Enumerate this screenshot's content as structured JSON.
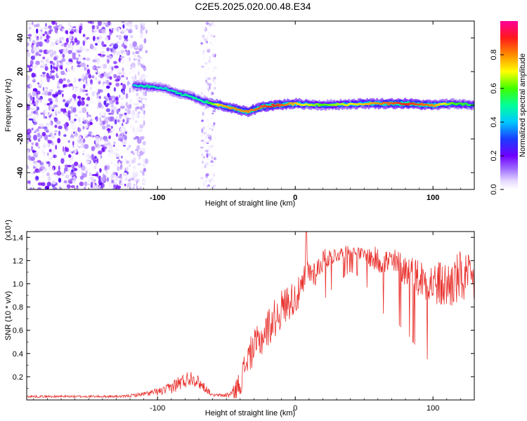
{
  "title": "C2E5.2025.020.00.48.E34",
  "chart_data": [
    {
      "type": "heatmap",
      "xlabel": "Height of straight line (km)",
      "ylabel": "Frequency (Hz)",
      "xlim": [
        -195,
        130
      ],
      "ylim": [
        -50,
        50
      ],
      "xticks": [
        -100,
        0,
        100
      ],
      "xtick_labels": [
        "-100",
        "0",
        "100"
      ],
      "yticks": [
        -40,
        -20,
        0,
        20,
        40
      ],
      "ytick_labels": [
        "-40",
        "-20",
        "0",
        "20",
        "40"
      ],
      "colorbar": {
        "label": "Normalized spectral amplitude",
        "range": [
          0,
          1
        ],
        "ticks": [
          0.0,
          0.2,
          0.4,
          0.6,
          0.8
        ],
        "tick_labels": [
          "0.0",
          "0.2",
          "0.4",
          "0.6",
          "0.8"
        ],
        "colormap": "rainbow (white-violet-blue-cyan-green-yellow-red-magenta)"
      },
      "ridge": {
        "x": [
          -117,
          -105,
          -95,
          -85,
          -75,
          -65,
          -55,
          -45,
          -35,
          -25,
          -15,
          0,
          20,
          50,
          80,
          100,
          115,
          130
        ],
        "freq": [
          12,
          11,
          10,
          7,
          5,
          2,
          0,
          -2,
          -4,
          -1,
          0,
          1,
          0,
          1,
          1,
          0,
          1,
          0
        ],
        "amplitude": [
          0.45,
          0.5,
          0.45,
          0.5,
          0.5,
          0.5,
          0.75,
          0.8,
          0.8,
          0.85,
          0.9,
          0.75,
          0.6,
          0.75,
          0.9,
          0.8,
          0.6,
          0.55
        ]
      },
      "noise_region_x": [
        -195,
        -112
      ],
      "noise_column_x": [
        -68,
        -58
      ]
    },
    {
      "type": "line",
      "xlabel": "Height of straight line (km)",
      "ylabel": "SNR (10 * v/v)",
      "y_multiplier": "(x10⁴)",
      "xlim": [
        -195,
        130
      ],
      "ylim": [
        0,
        1.45
      ],
      "xticks": [
        -100,
        0,
        100
      ],
      "xtick_labels": [
        "-100",
        "0",
        "100"
      ],
      "yticks": [
        0.2,
        0.4,
        0.6,
        0.8,
        1.0,
        1.2,
        1.4
      ],
      "ytick_labels": [
        "0.2",
        "0.4",
        "0.6",
        "0.8",
        "1.0",
        "1.2",
        "1.4"
      ],
      "color": "#e8302c",
      "envelope": {
        "x": [
          -195,
          -150,
          -125,
          -110,
          -95,
          -85,
          -75,
          -65,
          -60,
          -50,
          -45,
          -40,
          -35,
          -30,
          -25,
          -20,
          -15,
          -10,
          -5,
          0,
          5,
          8,
          10,
          15,
          20,
          30,
          40,
          50,
          55,
          60,
          70,
          80,
          90,
          100,
          110,
          120,
          130
        ],
        "mean": [
          0.03,
          0.03,
          0.03,
          0.05,
          0.08,
          0.14,
          0.2,
          0.1,
          0.04,
          0.04,
          0.06,
          0.15,
          0.35,
          0.45,
          0.52,
          0.62,
          0.7,
          0.78,
          0.85,
          0.88,
          0.95,
          1.1,
          1.1,
          1.1,
          1.2,
          1.25,
          1.28,
          1.25,
          1.22,
          1.2,
          1.18,
          1.12,
          1.05,
          1.0,
          0.98,
          1.05,
          1.02
        ],
        "noise": [
          0.01,
          0.01,
          0.01,
          0.02,
          0.04,
          0.07,
          0.07,
          0.04,
          0.01,
          0.02,
          0.06,
          0.12,
          0.14,
          0.15,
          0.16,
          0.17,
          0.17,
          0.17,
          0.16,
          0.15,
          0.14,
          0.14,
          0.12,
          0.12,
          0.1,
          0.07,
          0.05,
          0.06,
          0.1,
          0.12,
          0.14,
          0.15,
          0.18,
          0.2,
          0.22,
          0.24,
          0.2
        ]
      },
      "peak": {
        "x": 8,
        "y": 1.45
      }
    }
  ]
}
